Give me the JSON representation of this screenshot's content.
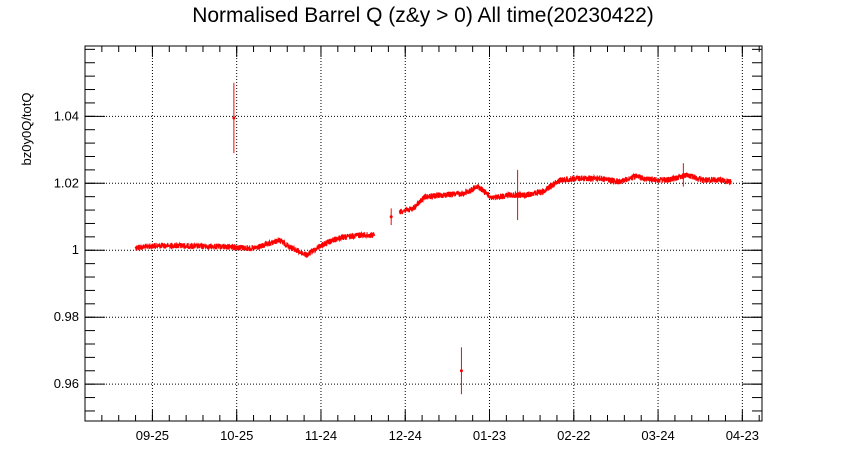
{
  "chart_data": {
    "type": "scatter",
    "title": "Normalised Barrel Q (z&y > 0) All time(20230422)",
    "xlabel": "",
    "ylabel": "bz0y0Q/totQ",
    "x_axis": {
      "type": "date",
      "range": [
        "2022-09-01",
        "2023-04-30"
      ]
    },
    "ylim": [
      0.949,
      1.061
    ],
    "x_ticks": [
      {
        "date": "2022-09-25",
        "label": "09-25"
      },
      {
        "date": "2022-10-25",
        "label": "10-25"
      },
      {
        "date": "2022-11-24",
        "label": "11-24"
      },
      {
        "date": "2022-12-24",
        "label": "12-24"
      },
      {
        "date": "2023-01-23",
        "label": "01-23"
      },
      {
        "date": "2023-02-22",
        "label": "02-22"
      },
      {
        "date": "2023-03-24",
        "label": "03-24"
      },
      {
        "date": "2023-04-23",
        "label": "04-23"
      }
    ],
    "y_ticks": [
      {
        "value": 0.96,
        "label": "0.96"
      },
      {
        "value": 0.98,
        "label": "0.98"
      },
      {
        "value": 1.0,
        "label": "1"
      },
      {
        "value": 1.02,
        "label": "1.02"
      },
      {
        "value": 1.04,
        "label": "1.04"
      }
    ],
    "grid": true,
    "series_color": "#ff0000",
    "series": [
      {
        "values": [
          {
            "x": "2022-09-19",
            "y": 1.0008
          },
          {
            "x": "2022-09-26",
            "y": 1.0013
          },
          {
            "x": "2022-10-03",
            "y": 1.0014
          },
          {
            "x": "2022-10-10",
            "y": 1.0012
          },
          {
            "x": "2022-10-17",
            "y": 1.0011
          },
          {
            "x": "2022-10-24",
            "y": 1.001
          },
          {
            "x": "2022-10-31",
            "y": 1.0005
          },
          {
            "x": "2022-11-04",
            "y": 1.0015
          },
          {
            "x": "2022-11-09",
            "y": 1.003
          },
          {
            "x": "2022-11-14",
            "y": 1.0005
          },
          {
            "x": "2022-11-19",
            "y": 0.9985
          },
          {
            "x": "2022-11-24",
            "y": 1.0015
          },
          {
            "x": "2022-11-30",
            "y": 1.0035
          },
          {
            "x": "2022-12-07",
            "y": 1.0045
          },
          {
            "x": "2022-12-13",
            "y": 1.0045
          }
        ]
      },
      {
        "values": [
          {
            "x": "2022-12-22",
            "y": 1.0115
          },
          {
            "x": "2022-12-27",
            "y": 1.0125
          },
          {
            "x": "2022-12-31",
            "y": 1.016
          },
          {
            "x": "2023-01-07",
            "y": 1.0165
          },
          {
            "x": "2023-01-14",
            "y": 1.017
          },
          {
            "x": "2023-01-19",
            "y": 1.019
          },
          {
            "x": "2023-01-24",
            "y": 1.0155
          },
          {
            "x": "2023-01-30",
            "y": 1.0165
          },
          {
            "x": "2023-02-05",
            "y": 1.0165
          },
          {
            "x": "2023-02-11",
            "y": 1.0175
          },
          {
            "x": "2023-02-17",
            "y": 1.021
          },
          {
            "x": "2023-02-24",
            "y": 1.0215
          },
          {
            "x": "2023-03-03",
            "y": 1.0215
          },
          {
            "x": "2023-03-10",
            "y": 1.0205
          },
          {
            "x": "2023-03-16",
            "y": 1.022
          },
          {
            "x": "2023-03-22",
            "y": 1.021
          },
          {
            "x": "2023-03-28",
            "y": 1.021
          },
          {
            "x": "2023-04-03",
            "y": 1.0225
          },
          {
            "x": "2023-04-09",
            "y": 1.021
          },
          {
            "x": "2023-04-15",
            "y": 1.021
          },
          {
            "x": "2023-04-19",
            "y": 1.0205
          }
        ]
      }
    ],
    "error_points": [
      {
        "x": "2022-10-24",
        "y": 1.0395,
        "err": 0.0105
      },
      {
        "x": "2023-01-13",
        "y": 0.964,
        "err": 0.007
      },
      {
        "x": "2023-02-02",
        "y": 1.0165,
        "err": 0.0075
      },
      {
        "x": "2022-12-19",
        "y": 1.01,
        "err": 0.0025
      },
      {
        "x": "2023-04-02",
        "y": 1.0225,
        "err": 0.0035
      }
    ]
  }
}
